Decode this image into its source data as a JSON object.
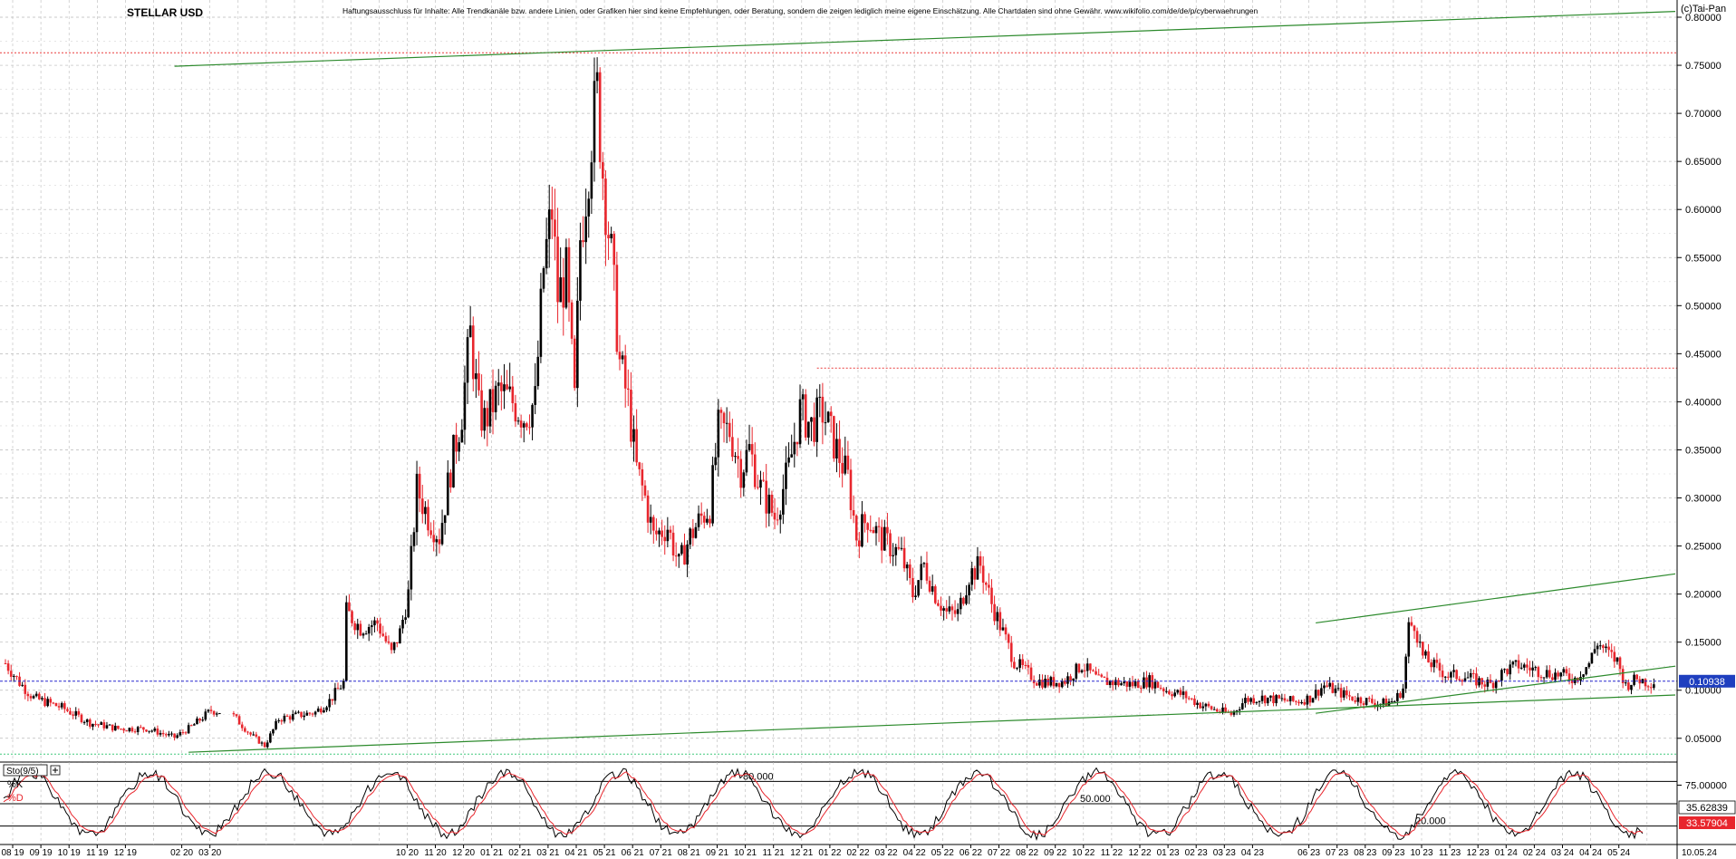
{
  "header": {
    "title": "STELLAR USD",
    "disclaimer": "Haftungsausschluss für Inhalte: Alle Trendkanäle bzw. andere Linien, oder Grafiken hier sind keine Empfehlungen, oder Beratung, sondern die zeigen lediglich meine eigene Einschätzung. Alle Chartdaten sind ohne Gewähr. www.wikifolio.com/de/de/p/cyberwaehrungen",
    "copyright": "(c)Tai-Pan"
  },
  "colors": {
    "up": "#000000",
    "down": "#e8262d",
    "trend": "#2c8a2c",
    "resistance": "#e83b3b",
    "support_dotted": "#41c97d",
    "price_line": "#2b2bd0",
    "price_tag_bg": "#1f3fbf",
    "k_line": "#000000",
    "d_line": "#e8262d",
    "grid": "#b9b9b9"
  },
  "chart_data": [
    {
      "type": "candlestick",
      "y_axis": {
        "min": 0.03,
        "max": 0.8,
        "ticks": [
          "0.80000",
          "0.75000",
          "0.70000",
          "0.65000",
          "0.60000",
          "0.55000",
          "0.50000",
          "0.45000",
          "0.40000",
          "0.35000",
          "0.30000",
          "0.25000",
          "0.20000",
          "0.15000",
          "0.10000",
          "0.05000"
        ],
        "tick_values": [
          0.8,
          0.75,
          0.7,
          0.65,
          0.6,
          0.55,
          0.5,
          0.45,
          0.4,
          0.35,
          0.3,
          0.25,
          0.2,
          0.15,
          0.1,
          0.05
        ]
      },
      "x_axis": {
        "labels": [
          "08 19",
          "09 19",
          "10 19",
          "11 19",
          "12 19",
          "02 20",
          "03 20",
          "10 20",
          "11 20",
          "12 20",
          "01 21",
          "02 21",
          "03 21",
          "04 21",
          "05 21",
          "06 21",
          "07 21",
          "08 21",
          "09 21",
          "10 21",
          "11 21",
          "12 21",
          "01 22",
          "02 22",
          "03 22",
          "04 22",
          "05 22",
          "06 22",
          "07 22",
          "08 22",
          "09 22",
          "10 22",
          "11 22",
          "12 22",
          "01 23",
          "02 23",
          "03 23",
          "04 23",
          "06 23",
          "07 23",
          "08 23",
          "09 23",
          "10 23",
          "11 23",
          "12 23",
          "01 24",
          "02 24",
          "03 24",
          "04 24",
          "05 24"
        ],
        "label_months": [
          0,
          1,
          2,
          3,
          4,
          6,
          7,
          14,
          15,
          16,
          17,
          18,
          19,
          20,
          21,
          22,
          23,
          24,
          25,
          26,
          27,
          28,
          29,
          30,
          31,
          32,
          33,
          34,
          35,
          36,
          37,
          38,
          39,
          40,
          41,
          42,
          43,
          44,
          46,
          47,
          48,
          49,
          50,
          51,
          52,
          53,
          54,
          55,
          56,
          57
        ],
        "end_label": "10.05.24",
        "months_total": 58
      },
      "close_path": [
        [
          0,
          0.128
        ],
        [
          0.5,
          0.108
        ],
        [
          1,
          0.092
        ],
        [
          2,
          0.082
        ],
        [
          3,
          0.066
        ],
        [
          4,
          0.06
        ],
        [
          5,
          0.06
        ],
        [
          6,
          0.051
        ],
        [
          6.6,
          0.062
        ],
        [
          7.3,
          0.079
        ],
        [
          8,
          0.076
        ],
        [
          8.7,
          0.054
        ],
        [
          9.2,
          0.042
        ],
        [
          9.7,
          0.07
        ],
        [
          10,
          0.072
        ],
        [
          11,
          0.077
        ],
        [
          11.5,
          0.089
        ],
        [
          12,
          0.108
        ],
        [
          12,
          0.185
        ],
        [
          12.6,
          0.165
        ],
        [
          13.2,
          0.17
        ],
        [
          13.7,
          0.138
        ],
        [
          14,
          0.16
        ],
        [
          14.3,
          0.2
        ],
        [
          14.6,
          0.31
        ],
        [
          15,
          0.28
        ],
        [
          15.4,
          0.26
        ],
        [
          15.8,
          0.33
        ],
        [
          16.2,
          0.39
        ],
        [
          16.5,
          0.47
        ],
        [
          16.8,
          0.39
        ],
        [
          17,
          0.38
        ],
        [
          17.5,
          0.41
        ],
        [
          18,
          0.4
        ],
        [
          18.4,
          0.385
        ],
        [
          18.8,
          0.4
        ],
        [
          19.1,
          0.54
        ],
        [
          19.4,
          0.6
        ],
        [
          19.6,
          0.51
        ],
        [
          19.9,
          0.53
        ],
        [
          20.2,
          0.4
        ],
        [
          20.4,
          0.57
        ],
        [
          20.6,
          0.62
        ],
        [
          20.8,
          0.68
        ],
        [
          21,
          0.72
        ],
        [
          21.2,
          0.64
        ],
        [
          21.5,
          0.55
        ],
        [
          21.8,
          0.44
        ],
        [
          22.1,
          0.4
        ],
        [
          22.4,
          0.33
        ],
        [
          22.7,
          0.3
        ],
        [
          23,
          0.26
        ],
        [
          23.5,
          0.27
        ],
        [
          23.9,
          0.23
        ],
        [
          24.3,
          0.26
        ],
        [
          24.7,
          0.28
        ],
        [
          25,
          0.29
        ],
        [
          25.3,
          0.37
        ],
        [
          25.7,
          0.37
        ],
        [
          26.1,
          0.33
        ],
        [
          26.4,
          0.35
        ],
        [
          26.8,
          0.31
        ],
        [
          27.3,
          0.28
        ],
        [
          27.8,
          0.33
        ],
        [
          28.2,
          0.39
        ],
        [
          28.6,
          0.375
        ],
        [
          29,
          0.39
        ],
        [
          29.5,
          0.35
        ],
        [
          29.9,
          0.32
        ],
        [
          30.2,
          0.26
        ],
        [
          30.6,
          0.28
        ],
        [
          31,
          0.26
        ],
        [
          31.4,
          0.25
        ],
        [
          31.8,
          0.24
        ],
        [
          32.2,
          0.2
        ],
        [
          32.6,
          0.23
        ],
        [
          33,
          0.2
        ],
        [
          33.4,
          0.18
        ],
        [
          33.8,
          0.18
        ],
        [
          34.2,
          0.22
        ],
        [
          34.6,
          0.23
        ],
        [
          35,
          0.19
        ],
        [
          35.4,
          0.16
        ],
        [
          35.8,
          0.13
        ],
        [
          36.2,
          0.12
        ],
        [
          36.6,
          0.11
        ],
        [
          37,
          0.108
        ],
        [
          37.6,
          0.11
        ],
        [
          38.2,
          0.126
        ],
        [
          38.8,
          0.11
        ],
        [
          39.4,
          0.108
        ],
        [
          40,
          0.106
        ],
        [
          40.6,
          0.11
        ],
        [
          41.2,
          0.1
        ],
        [
          41.8,
          0.095
        ],
        [
          42.4,
          0.085
        ],
        [
          43,
          0.079
        ],
        [
          43.5,
          0.075
        ],
        [
          44,
          0.09
        ],
        [
          44.6,
          0.092
        ],
        [
          45.2,
          0.09
        ],
        [
          45.8,
          0.088
        ],
        [
          46.3,
          0.092
        ],
        [
          46.8,
          0.105
        ],
        [
          47.3,
          0.098
        ],
        [
          47.8,
          0.092
        ],
        [
          48.3,
          0.089
        ],
        [
          48.8,
          0.086
        ],
        [
          49.3,
          0.089
        ],
        [
          49.6,
          0.102
        ],
        [
          49.8,
          0.165
        ],
        [
          50,
          0.17
        ],
        [
          50.3,
          0.135
        ],
        [
          50.7,
          0.125
        ],
        [
          51.2,
          0.115
        ],
        [
          51.7,
          0.115
        ],
        [
          52.2,
          0.11
        ],
        [
          52.7,
          0.106
        ],
        [
          53.2,
          0.12
        ],
        [
          53.7,
          0.126
        ],
        [
          54.2,
          0.122
        ],
        [
          54.7,
          0.118
        ],
        [
          55.2,
          0.116
        ],
        [
          55.7,
          0.112
        ],
        [
          56.2,
          0.128
        ],
        [
          56.5,
          0.15
        ],
        [
          56.8,
          0.14
        ],
        [
          57.2,
          0.13
        ],
        [
          57.5,
          0.105
        ],
        [
          57.9,
          0.112
        ],
        [
          58.3,
          0.108
        ],
        [
          58.6,
          0.1094
        ]
      ],
      "last_price": 0.10938,
      "last_price_label": "0.10938",
      "levels": [
        {
          "name": "all-time-high",
          "value": 0.763,
          "style": "dotted",
          "color_key": "resistance"
        },
        {
          "name": "resistance-0.435",
          "value": 0.435,
          "from_month": 28.8,
          "style": "dotted",
          "color_key": "resistance"
        },
        {
          "name": "bottom-support",
          "value": 0.0335,
          "style": "dotted",
          "color_key": "support_dotted"
        }
      ],
      "trendlines": [
        {
          "name": "upper-long-trend",
          "from": [
            6,
            0.749
          ],
          "to": [
            62,
            0.806
          ]
        },
        {
          "name": "lower-long-trend",
          "from": [
            6.5,
            0.0355
          ],
          "to": [
            62,
            0.095
          ]
        },
        {
          "name": "channel-upper",
          "from": [
            46.5,
            0.17
          ],
          "to": [
            62,
            0.221
          ]
        },
        {
          "name": "channel-lower",
          "from": [
            46.5,
            0.076
          ],
          "to": [
            62,
            0.125
          ]
        }
      ]
    },
    {
      "type": "line",
      "title": "Sto(9/5)",
      "series": [
        {
          "name": "%K",
          "color_key": "k_line"
        },
        {
          "name": "%D",
          "color_key": "d_line"
        }
      ],
      "y_axis": {
        "min": 0,
        "max": 100,
        "ticks": [
          "75.00000"
        ],
        "tick_values": [
          75
        ]
      },
      "levels": [
        {
          "label": "80.000",
          "value": 80
        },
        {
          "label": "50.000",
          "value": 50
        },
        {
          "label": "20.000",
          "value": 20
        }
      ],
      "last_values": {
        "k_label": "35.62839",
        "d_label": "33.57904"
      }
    }
  ]
}
